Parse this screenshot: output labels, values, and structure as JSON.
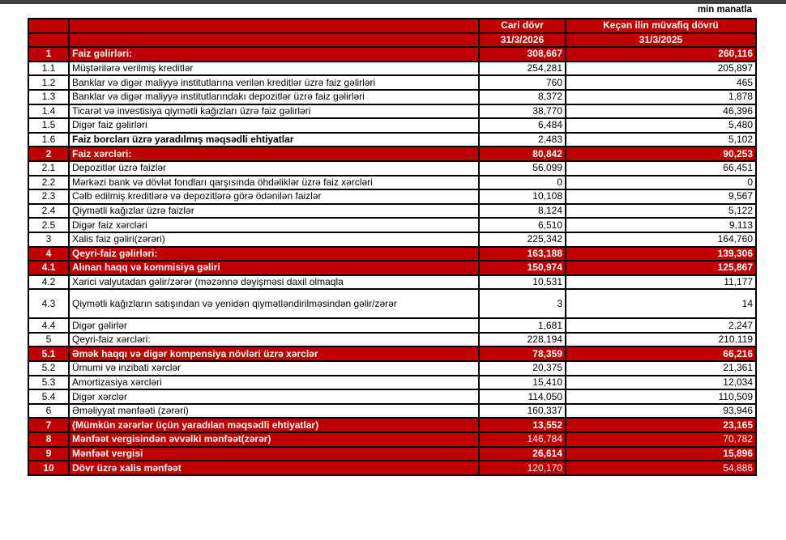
{
  "unit_label": "min manatla",
  "header": {
    "current_period": "Cari dövr",
    "previous_period": "Keçən ilin müvafiq dövrü",
    "current_date": "31/3/2026",
    "previous_date": "31/3/2025"
  },
  "rows": [
    {
      "num": "1",
      "label": "Faiz gəlirləri:",
      "cur": "308,667",
      "prev": "260,116",
      "red": true,
      "bold_label": true,
      "bold_vals": true
    },
    {
      "num": "1.1",
      "label": "Müştərilərə verilmiş kreditlər",
      "cur": "254,281",
      "prev": "205,897"
    },
    {
      "num": "1.2",
      "label": "Banklar və digər maliyyə institutlarına verilən kreditlər üzrə faiz gəlirləri",
      "cur": "760",
      "prev": "465"
    },
    {
      "num": "1.3",
      "label": "Banklar və digər maliyyə institutlarındakı depozitlər üzrə faiz gəlirləri",
      "cur": "8,372",
      "prev": "1,878"
    },
    {
      "num": "1.4",
      "label": "Ticarət və investisiya qiymətli kağızları üzrə faiz gəlirləri",
      "cur": "38,770",
      "prev": "46,396"
    },
    {
      "num": "1.5",
      "label": "Digər faiz gəlirləri",
      "cur": "6,484",
      "prev": "5,480"
    },
    {
      "num": "1.6",
      "label": "Faiz borcları üzrə yaradılmış məqsədli ehtiyatlar",
      "cur": "2,483",
      "prev": "5,102",
      "bold_label": true
    },
    {
      "num": "2",
      "label": "Faiz xərcləri:",
      "cur": "80,842",
      "prev": "90,253",
      "red": true,
      "bold_label": true,
      "bold_vals": true
    },
    {
      "num": "2.1",
      "label": "Depozitlər üzrə faizlər",
      "cur": "56,099",
      "prev": "66,451"
    },
    {
      "num": "2.2",
      "label": "Mərkəzi bank və dövlət fondları qarşısında öhdəliklər üzrə faiz xərcləri",
      "cur": "0",
      "prev": "0"
    },
    {
      "num": "2.3",
      "label": "Cəlb edilmiş kreditlərə və depozitlərə görə ödənilən faizlər",
      "cur": "10,108",
      "prev": "9,567"
    },
    {
      "num": "2.4",
      "label": "Qiymətli kağızlar üzrə faizlər",
      "cur": "8,124",
      "prev": "5,122"
    },
    {
      "num": "2.5",
      "label": "Digər faiz xərcləri",
      "cur": "6,510",
      "prev": "9,113"
    },
    {
      "num": "3",
      "label": "Xalis faiz gəliri(zərəri)",
      "cur": "225,342",
      "prev": "164,760"
    },
    {
      "num": "4",
      "label": "Qeyri-faiz gəlirləri:",
      "cur": "163,188",
      "prev": "139,306",
      "red": true,
      "bold_label": true,
      "bold_vals": true
    },
    {
      "num": "4.1",
      "label": "Alınan haqq və kommisiya gəliri",
      "cur": "150,974",
      "prev": "125,867",
      "red": true,
      "bold_label": true,
      "bold_vals": true
    },
    {
      "num": "4.2",
      "label": "Xarici valyutadan gəlir/zərər (məzənnə dəyişməsi daxil olmaqla",
      "cur": "10,531",
      "prev": "11,177"
    },
    {
      "num": "4.3",
      "label": "Qiymətli kağızların satışından və yenidən qiymətləndirilməsindən gəlir/zərər",
      "cur": "3",
      "prev": "14",
      "tall": true
    },
    {
      "num": "4.4",
      "label": "Digər gəlirlər",
      "cur": "1,681",
      "prev": "2,247"
    },
    {
      "num": "5",
      "label": "Qeyri-faiz xərcləri:",
      "cur": "228,194",
      "prev": "210,119"
    },
    {
      "num": "5.1",
      "label": "Əmək haqqı və digər kompensiya növləri üzrə xərclər",
      "cur": "78,359",
      "prev": "66,216",
      "red": true,
      "bold_label": true,
      "bold_vals": true
    },
    {
      "num": "5.2",
      "label": "Ümumi və inzibati xərclər",
      "cur": "20,375",
      "prev": "21,361"
    },
    {
      "num": "5.3",
      "label": "Amortizasiya xərcləri",
      "cur": "15,410",
      "prev": "12,034"
    },
    {
      "num": "5.4",
      "label": "Digər xərclər",
      "cur": "114,050",
      "prev": "110,509"
    },
    {
      "num": "6",
      "label": "Əməliyyat mənfəəti (zərəri)",
      "cur": "160,337",
      "prev": "93,946"
    },
    {
      "num": "7",
      "label": "(Mümkün zərərlər üçün yaradılan məqsədli ehtiyatlar)",
      "cur": "13,552",
      "prev": "23,165",
      "red": true,
      "bold_label": true,
      "bold_vals": true
    },
    {
      "num": "8",
      "label": "Mənfəət vergisindən əvvəlki mənfəət(zərər)",
      "cur": "146,784",
      "prev": "70,782",
      "red": true,
      "bold_label": true
    },
    {
      "num": "9",
      "label": "Mənfəət vergisi",
      "cur": "26,614",
      "prev": "15,896",
      "red": true,
      "bold_label": true,
      "bold_vals": true
    },
    {
      "num": "10",
      "label": "Dövr üzrə xalis mənfəət",
      "cur": "120,170",
      "prev": "54,886",
      "red": true,
      "bold_label": true
    }
  ]
}
